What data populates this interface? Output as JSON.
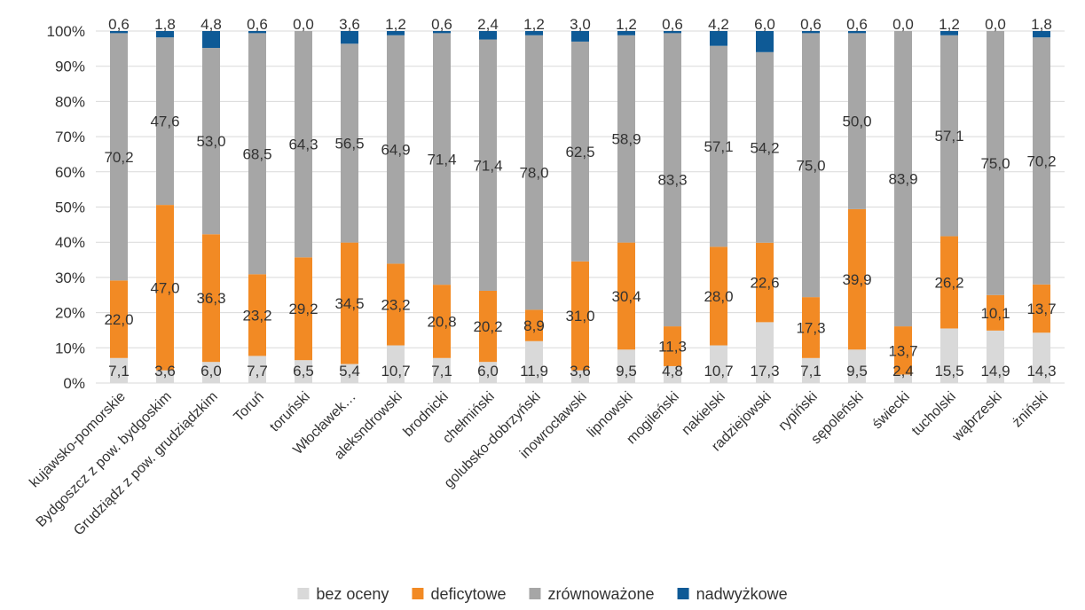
{
  "chart_data": {
    "type": "bar",
    "stacked": true,
    "percent_stacked": true,
    "categories": [
      "kujawsko-pomorskie",
      "Bydgoszcz z pow. bydgoskim",
      "Grudziądz z pow. grudziądzkim",
      "Toruń",
      "toruński",
      "Włocławek…",
      "aleksndrowski",
      "brodnicki",
      "chełmiński",
      "golubsko-dobrzyński",
      "inowrocławski",
      "lipnowski",
      "mogileński",
      "nakielski",
      "radziejowski",
      "rypiński",
      "sępoleński",
      "świecki",
      "tucholski",
      "wąbrzeski",
      "żniński"
    ],
    "series": [
      {
        "name": "bez oceny",
        "color": "#d9d9d9",
        "values": [
          7.1,
          3.6,
          6.0,
          7.7,
          6.5,
          5.4,
          10.7,
          7.1,
          6.0,
          11.9,
          3.6,
          9.5,
          4.8,
          10.7,
          17.3,
          7.1,
          9.5,
          2.4,
          15.5,
          14.9,
          14.3
        ],
        "labels": [
          "7,1",
          "3,6",
          "6,0",
          "7,7",
          "6,5",
          "5,4",
          "10,7",
          "7,1",
          "6,0",
          "11,9",
          "3,6",
          "9,5",
          "4,8",
          "10,7",
          "17,3",
          "7,1",
          "9,5",
          "2,4",
          "15,5",
          "14,9",
          "14,3"
        ]
      },
      {
        "name": "deficytowe",
        "color": "#f28a24",
        "values": [
          22.0,
          47.0,
          36.3,
          23.2,
          29.2,
          34.5,
          23.2,
          20.8,
          20.2,
          8.9,
          31.0,
          30.4,
          11.3,
          28.0,
          22.6,
          17.3,
          39.9,
          13.7,
          26.2,
          10.1,
          13.7
        ],
        "labels": [
          "22,0",
          "47,0",
          "36,3",
          "23,2",
          "29,2",
          "34,5",
          "23,2",
          "20,8",
          "20,2",
          "8,9",
          "31,0",
          "30,4",
          "11,3",
          "28,0",
          "22,6",
          "17,3",
          "39,9",
          "13,7",
          "26,2",
          "10,1",
          "13,7"
        ]
      },
      {
        "name": "zrównoważone",
        "color": "#a6a6a6",
        "values": [
          70.2,
          47.6,
          53.0,
          68.5,
          64.3,
          56.5,
          64.9,
          71.4,
          71.4,
          78.0,
          62.5,
          58.9,
          83.3,
          57.1,
          54.2,
          75.0,
          50.0,
          83.9,
          57.1,
          75.0,
          70.2
        ],
        "labels": [
          "70,2",
          "47,6",
          "53,0",
          "68,5",
          "64,3",
          "56,5",
          "64,9",
          "71,4",
          "71,4",
          "78,0",
          "62,5",
          "58,9",
          "83,3",
          "57,1",
          "54,2",
          "75,0",
          "50,0",
          "83,9",
          "57,1",
          "75,0",
          "70,2"
        ]
      },
      {
        "name": "nadwyżkowe",
        "color": "#0e5a96",
        "values": [
          0.6,
          1.8,
          4.8,
          0.6,
          0.0,
          3.6,
          1.2,
          0.6,
          2.4,
          1.2,
          3.0,
          1.2,
          0.6,
          4.2,
          6.0,
          0.6,
          0.6,
          0.0,
          1.2,
          0.0,
          1.8
        ],
        "labels": [
          "0,6",
          "1,8",
          "4,8",
          "0,6",
          "0,0",
          "3,6",
          "1,2",
          "0,6",
          "2,4",
          "1,2",
          "3,0",
          "1,2",
          "0,6",
          "4,2",
          "6,0",
          "0,6",
          "0,6",
          "0,0",
          "1,2",
          "0,0",
          "1,8"
        ]
      }
    ],
    "yticks": [
      "0%",
      "10%",
      "20%",
      "30%",
      "40%",
      "50%",
      "60%",
      "70%",
      "80%",
      "90%",
      "100%"
    ],
    "ylim": [
      0,
      100
    ],
    "grid": true,
    "legend_position": "bottom"
  }
}
